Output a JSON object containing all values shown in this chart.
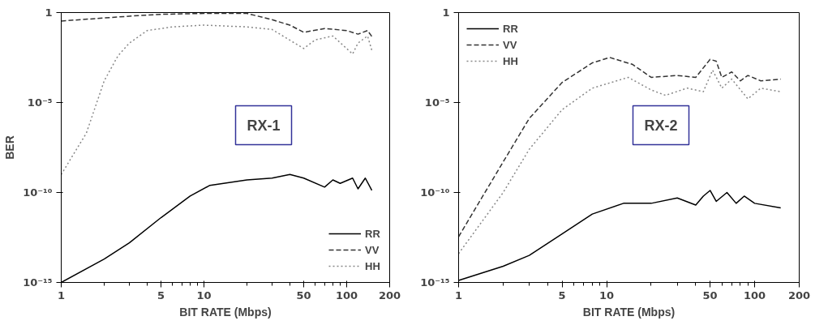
{
  "chart_data": [
    {
      "type": "line",
      "xlabel": "BIT RATE (Mbps)",
      "ylabel": "BER",
      "log": "xy",
      "legend": "bottom right",
      "grid": false,
      "annotations": [
        "RX-1"
      ],
      "xlim": [
        1,
        200
      ],
      "xticks": [
        1,
        5,
        10,
        50,
        100,
        200
      ],
      "ylim": [
        1e-15,
        1
      ],
      "yticks": [
        {
          "value": 1e-15,
          "label": "10⁻¹⁵"
        },
        {
          "value": 1e-10,
          "label": "10⁻¹⁰"
        },
        {
          "value": 1e-05,
          "label": "10⁻⁵"
        },
        1
      ],
      "series": [
        {
          "name": "RR",
          "color": "#000000",
          "line_style": "solid",
          "x": [
            1,
            2,
            3,
            5,
            8,
            11,
            20,
            30,
            40,
            50,
            70,
            80,
            90,
            110,
            120,
            135,
            150
          ],
          "values": [
            1e-15,
            2e-14,
            1.6e-13,
            4e-12,
            6.3e-11,
            2.5e-10,
            5e-10,
            6.3e-10,
            1e-09,
            6.3e-10,
            2e-10,
            5e-10,
            3.2e-10,
            6.3e-10,
            1.6e-10,
            6.3e-10,
            1.3e-10
          ]
        },
        {
          "name": "VV",
          "color": "#333333",
          "line_style": "dashed",
          "x": [
            1,
            2,
            3,
            5,
            10,
            20,
            30,
            40,
            50,
            70,
            100,
            120,
            140,
            150
          ],
          "values": [
            0.34,
            0.5,
            0.63,
            0.8,
            0.9,
            0.9,
            0.4,
            0.2,
            0.08,
            0.13,
            0.1,
            0.063,
            0.1,
            0.047
          ]
        },
        {
          "name": "HH",
          "color": "#888888",
          "line_style": "dotted",
          "x": [
            1,
            1.5,
            2,
            2.5,
            3,
            4,
            6,
            10,
            20,
            30,
            50,
            60,
            80,
            110,
            120,
            140,
            150
          ],
          "values": [
            1e-09,
            2e-07,
            0.00016,
            0.004,
            0.02,
            0.1,
            0.16,
            0.2,
            0.16,
            0.115,
            0.01,
            0.03,
            0.05,
            0.005,
            0.02,
            0.05,
            0.008
          ]
        }
      ]
    },
    {
      "type": "line",
      "xlabel": "BIT RATE (Mbps)",
      "log": "xy",
      "legend": "top left",
      "grid": false,
      "annotations": [
        "RX-2"
      ],
      "xlim": [
        1,
        200
      ],
      "xticks": [
        1,
        5,
        10,
        50,
        100,
        200
      ],
      "ylim": [
        1e-15,
        1
      ],
      "yticks": [
        {
          "value": 1e-15,
          "label": "10⁻¹⁵"
        },
        {
          "value": 1e-10,
          "label": "10⁻¹⁰"
        },
        {
          "value": 1e-05,
          "label": "10⁻⁵"
        },
        1
      ],
      "series": [
        {
          "name": "RR",
          "color": "#000000",
          "line_style": "solid",
          "x": [
            1,
            2,
            3,
            5,
            8,
            13,
            20,
            30,
            40,
            45,
            50,
            55,
            65,
            75,
            85,
            100,
            150
          ],
          "values": [
            1.3e-15,
            8e-15,
            3.2e-14,
            5e-13,
            6.3e-12,
            2.5e-11,
            2.5e-11,
            5e-11,
            2e-11,
            6.3e-11,
            1.3e-10,
            3.2e-11,
            1e-10,
            2.5e-11,
            6.3e-11,
            2.5e-11,
            1.4e-11
          ]
        },
        {
          "name": "VV",
          "color": "#333333",
          "line_style": "dashed",
          "x": [
            1,
            2,
            3,
            5,
            8,
            10.5,
            15,
            20,
            30,
            40,
            50,
            55,
            60,
            70,
            80,
            90,
            110,
            150
          ],
          "values": [
            3.5e-13,
            5e-09,
            1.3e-06,
            0.00013,
            0.0016,
            0.0032,
            0.0013,
            0.00025,
            0.00032,
            0.00025,
            0.0025,
            0.002,
            0.00025,
            0.0005,
            0.00016,
            0.00032,
            0.00016,
            0.0002
          ]
        },
        {
          "name": "HH",
          "color": "#888888",
          "line_style": "dotted",
          "x": [
            1,
            2,
            3,
            5,
            8,
            14,
            20,
            25,
            35,
            45,
            52,
            60,
            70,
            90,
            110,
            150
          ],
          "values": [
            4e-14,
            1e-10,
            2.5e-08,
            4e-06,
            6.3e-05,
            0.00025,
            5e-05,
            2.5e-05,
            6.3e-05,
            4e-05,
            0.00063,
            6.3e-05,
            0.0002,
            1.6e-05,
            6.3e-05,
            4e-05
          ]
        }
      ]
    }
  ]
}
